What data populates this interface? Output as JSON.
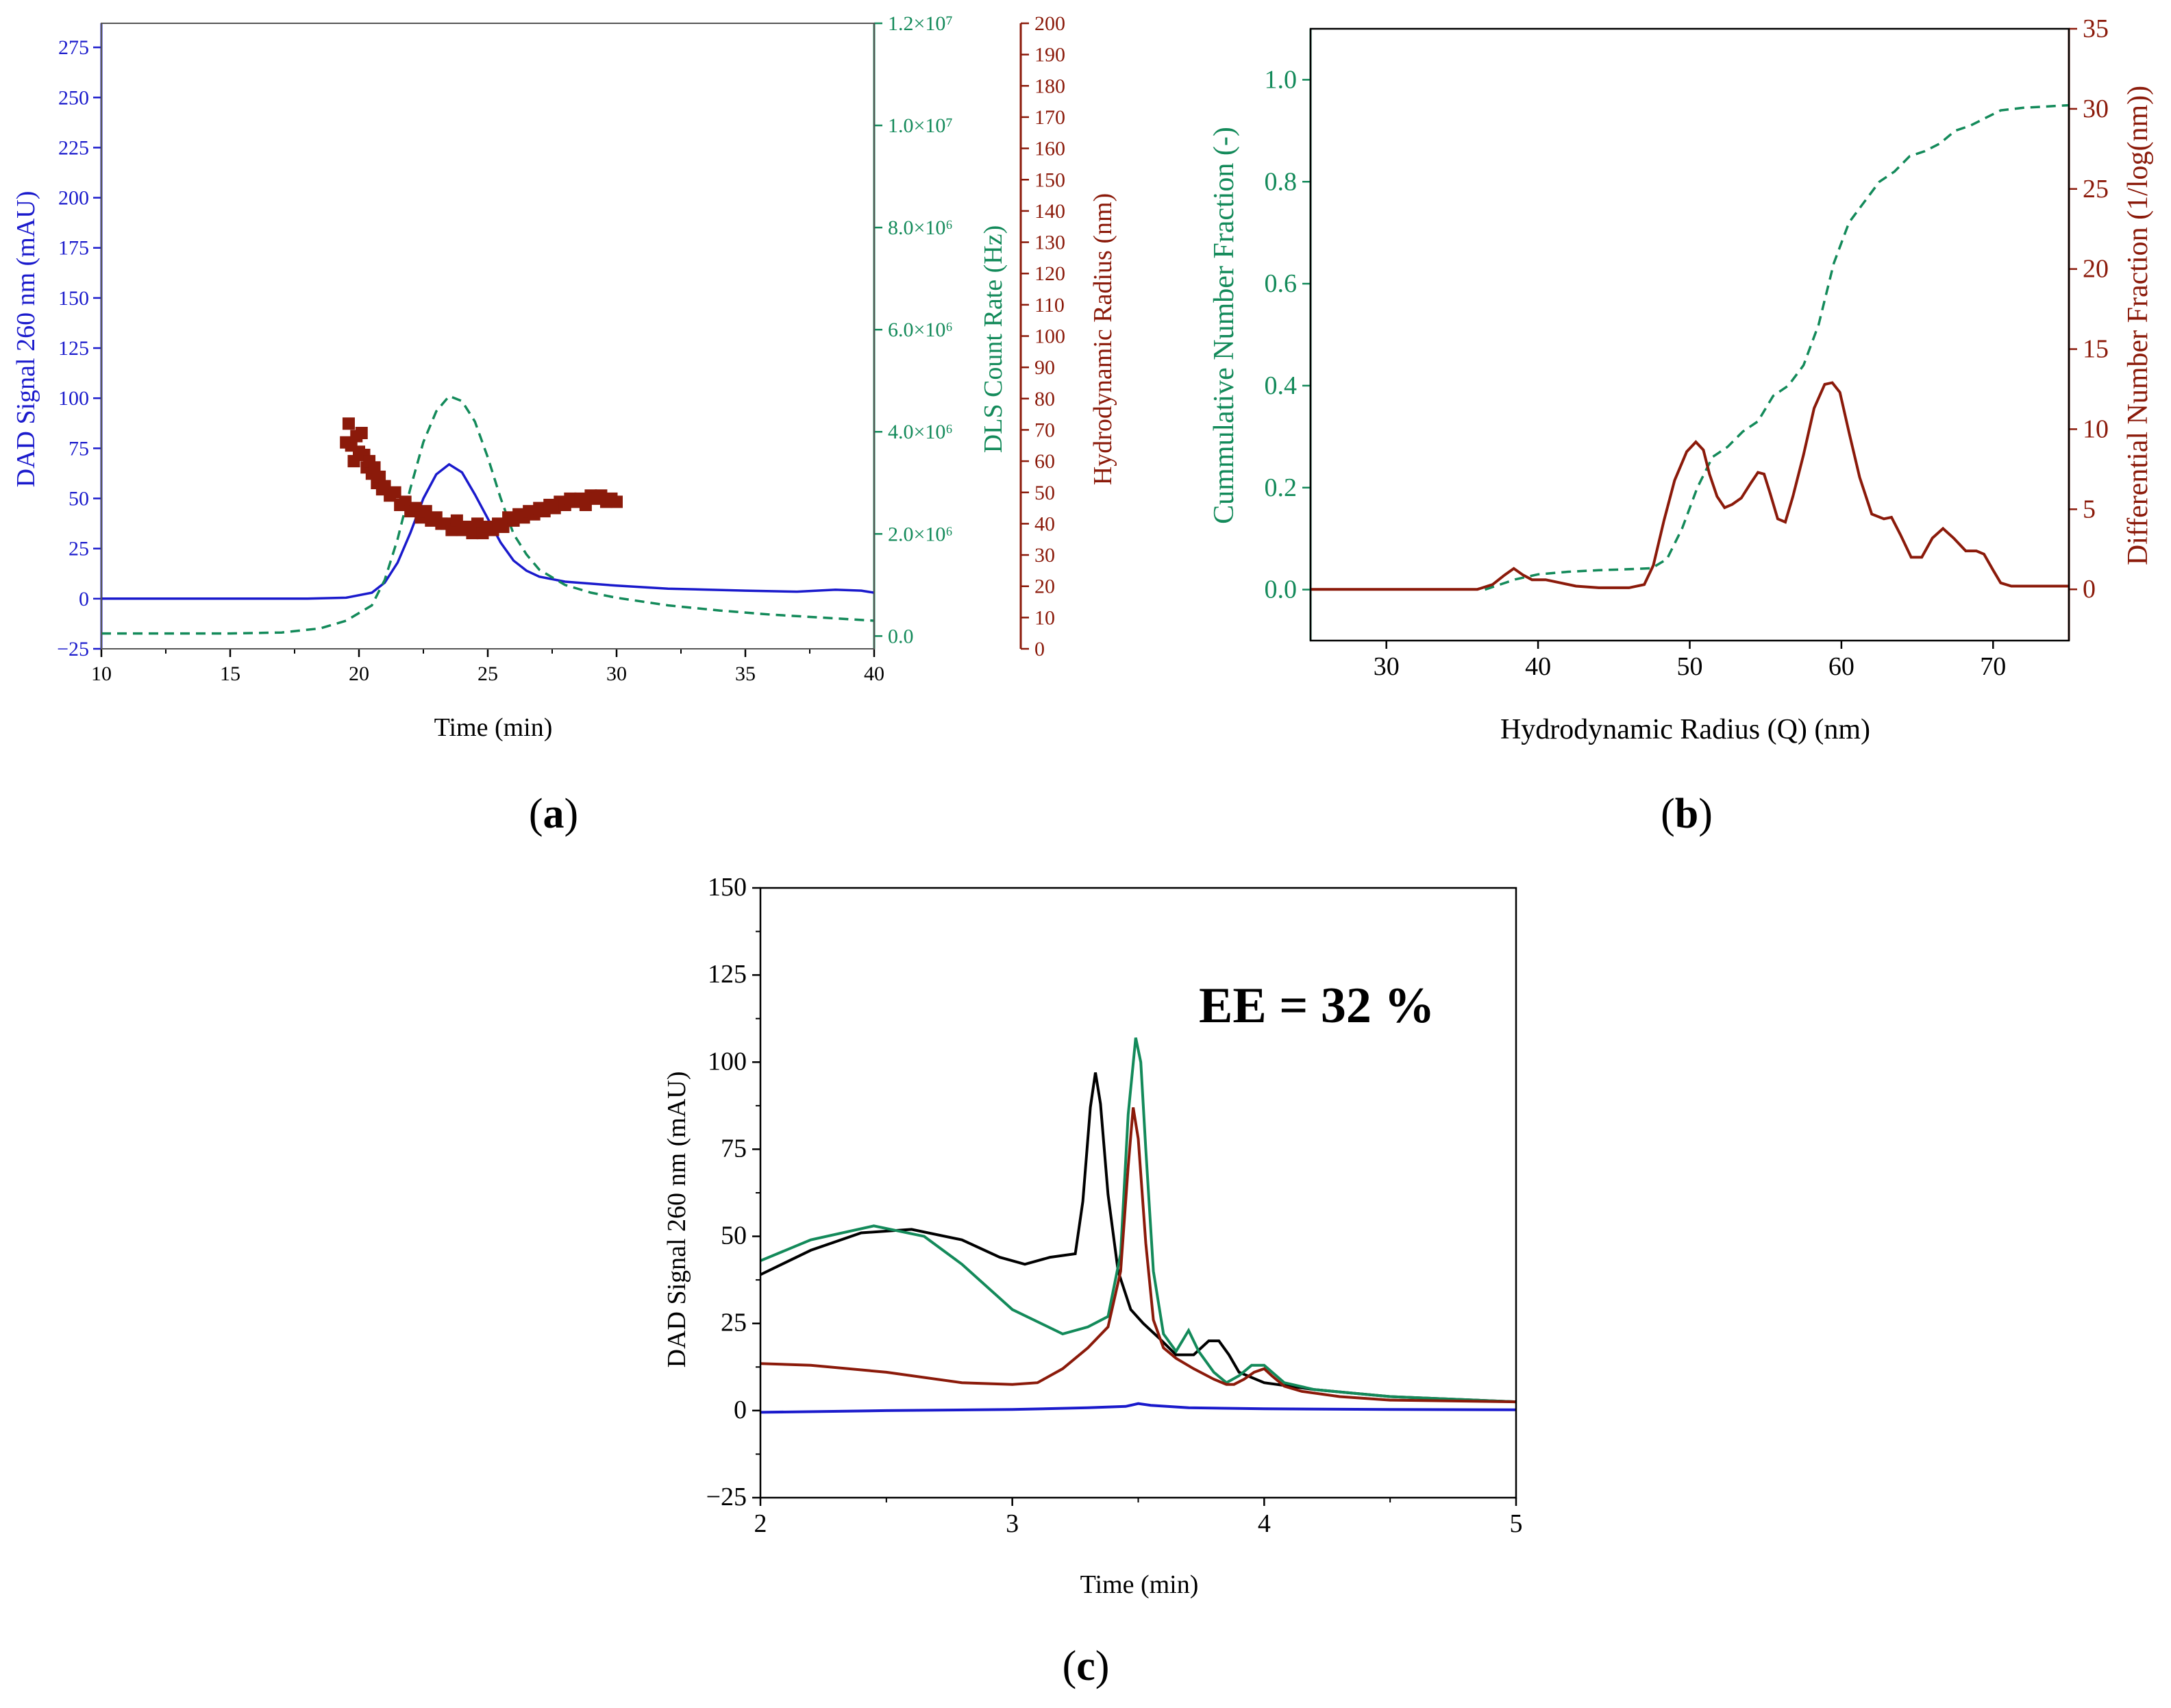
{
  "colors": {
    "blue": "#1a1acc",
    "green": "#138a5a",
    "darkred": "#8b1a0a",
    "black": "#000000"
  },
  "panels": {
    "a": "(a)",
    "b": "(b)",
    "c": "(c)"
  },
  "chart_data": [
    {
      "id": "a",
      "type": "line",
      "label": "(a)",
      "xlabel": "Time (min)",
      "xlim": [
        10,
        40
      ],
      "xticks": [
        10,
        15,
        20,
        25,
        30,
        35,
        40
      ],
      "y_left": {
        "label": "DAD Signal 260 nm (mAU)",
        "lim": [
          -25,
          287
        ],
        "ticks": [
          -25,
          0,
          25,
          50,
          75,
          100,
          125,
          150,
          175,
          200,
          225,
          250,
          275
        ]
      },
      "y_right1": {
        "label": "DLS Count Rate (Hz)",
        "lim": [
          -250000.0,
          12000000.0
        ],
        "ticks": [
          0,
          2000000.0,
          4000000.0,
          6000000.0,
          8000000.0,
          10000000.0,
          12000000.0
        ],
        "tick_labels": [
          "0.0",
          "2.0×10⁶",
          "4.0×10⁶",
          "6.0×10⁶",
          "8.0×10⁶",
          "1.0×10⁷",
          "1.2×10⁷"
        ]
      },
      "y_right2": {
        "label": "Hydrodynamic Radius (nm)",
        "lim": [
          0,
          200
        ],
        "ticks": [
          0,
          10,
          20,
          30,
          40,
          50,
          60,
          70,
          80,
          90,
          100,
          110,
          120,
          130,
          140,
          150,
          160,
          170,
          180,
          190,
          200
        ]
      },
      "series": [
        {
          "name": "DAD Signal",
          "axis": "y_left",
          "style": "solid",
          "color": "blue",
          "x": [
            10,
            15,
            18,
            19.5,
            20.5,
            21,
            21.5,
            22,
            22.5,
            23,
            23.5,
            24,
            24.5,
            25,
            25.5,
            26,
            26.5,
            27,
            28,
            30,
            32,
            35,
            37,
            38.5,
            39.5,
            40
          ],
          "y": [
            0,
            0,
            0,
            0.5,
            3,
            8,
            18,
            33,
            50,
            62,
            67,
            63,
            52,
            40,
            28,
            19,
            14,
            11,
            8.5,
            6.5,
            5,
            4,
            3.5,
            4.5,
            4,
            3
          ]
        },
        {
          "name": "DLS Count Rate",
          "axis": "y_right1",
          "style": "dashed",
          "color": "green",
          "x": [
            10,
            15,
            17,
            18.5,
            19.5,
            20.5,
            21,
            21.5,
            22,
            22.5,
            23,
            23.5,
            24,
            24.5,
            25,
            25.5,
            26,
            26.5,
            27,
            28,
            29,
            30,
            32,
            34,
            36,
            38,
            40
          ],
          "y": [
            50000.0,
            50000.0,
            70000.0,
            150000.0,
            300000.0,
            600000.0,
            1100000.0,
            1900000.0,
            2900000.0,
            3800000.0,
            4400000.0,
            4700000.0,
            4600000.0,
            4200000.0,
            3500000.0,
            2700000.0,
            2000000.0,
            1600000.0,
            1300000.0,
            1000000.0,
            850000.0,
            750000.0,
            600000.0,
            500000.0,
            420000.0,
            360000.0,
            300000.0
          ]
        },
        {
          "name": "Hydrodynamic Radius",
          "axis": "y_right2",
          "style": "square-markers",
          "color": "darkred",
          "x": [
            19.5,
            19.6,
            19.7,
            19.8,
            19.9,
            20.0,
            20.1,
            20.2,
            20.3,
            20.4,
            20.5,
            20.6,
            20.7,
            20.8,
            20.9,
            21.0,
            21.2,
            21.4,
            21.6,
            21.8,
            22.0,
            22.2,
            22.4,
            22.6,
            22.8,
            23.0,
            23.2,
            23.4,
            23.6,
            23.8,
            24.0,
            24.2,
            24.4,
            24.6,
            24.8,
            25.0,
            25.2,
            25.4,
            25.6,
            25.8,
            26.0,
            26.2,
            26.4,
            26.6,
            26.8,
            27.0,
            27.2,
            27.4,
            27.6,
            27.8,
            28.0,
            28.2,
            28.4,
            28.6,
            28.8,
            29.0,
            29.2,
            29.4,
            29.6,
            29.8,
            30.0
          ],
          "y": [
            66,
            72,
            65,
            60,
            68,
            63,
            69,
            62,
            58,
            60,
            56,
            58,
            53,
            55,
            51,
            52,
            49,
            50,
            46,
            47,
            44,
            45,
            42,
            44,
            41,
            42,
            40,
            40,
            38,
            41,
            38,
            39,
            37,
            40,
            37,
            39,
            38,
            40,
            39,
            42,
            41,
            43,
            42,
            44,
            43,
            45,
            44,
            46,
            45,
            47,
            46,
            48,
            47,
            48,
            46,
            49,
            48,
            49,
            47,
            48,
            47
          ]
        }
      ]
    },
    {
      "id": "b",
      "type": "line",
      "label": "(b)",
      "xlabel": "Hydrodynamic Radius (Q) (nm)",
      "xlim": [
        25,
        75
      ],
      "xticks": [
        30,
        40,
        50,
        60,
        70
      ],
      "y_left": {
        "label": "Cummulative Number Fraction (-)",
        "lim": [
          -0.1,
          1.1
        ],
        "ticks": [
          0.0,
          0.2,
          0.4,
          0.6,
          0.8,
          1.0
        ],
        "tick_labels": [
          "0.0",
          "0.2",
          "0.4",
          "0.6",
          "0.8",
          "1.0"
        ]
      },
      "y_right": {
        "label": "Differential Number Fraction (1/log(nm))",
        "lim": [
          -3.2,
          35
        ],
        "ticks": [
          0,
          5,
          10,
          15,
          20,
          25,
          30,
          35
        ]
      },
      "series": [
        {
          "name": "Cumulative Number Fraction",
          "axis": "y_left",
          "style": "dashed",
          "color": "green",
          "x": [
            36.5,
            37.5,
            38.5,
            40,
            42,
            44,
            46,
            47.5,
            48.5,
            49.5,
            50.5,
            51.5,
            52.5,
            53.5,
            54.5,
            55.5,
            56.5,
            57.5,
            58.5,
            59.5,
            60.5,
            61.5,
            62.5,
            63.5,
            64.5,
            65.5,
            66.5,
            67.5,
            68.5,
            69.5,
            70.5,
            72,
            75
          ],
          "y": [
            0.0,
            0.01,
            0.02,
            0.03,
            0.035,
            0.038,
            0.04,
            0.042,
            0.06,
            0.12,
            0.2,
            0.26,
            0.28,
            0.31,
            0.33,
            0.38,
            0.4,
            0.44,
            0.52,
            0.64,
            0.72,
            0.76,
            0.8,
            0.82,
            0.85,
            0.86,
            0.875,
            0.9,
            0.91,
            0.925,
            0.94,
            0.945,
            0.95
          ]
        },
        {
          "name": "Differential Number Fraction",
          "axis": "y_right",
          "style": "solid",
          "color": "darkred",
          "x": [
            25,
            34,
            36,
            37,
            37.8,
            38.4,
            39,
            39.6,
            40.5,
            41.5,
            42.5,
            44,
            46,
            47,
            47.6,
            48.3,
            49,
            49.8,
            50.4,
            50.9,
            51.3,
            51.8,
            52.3,
            52.8,
            53.4,
            54,
            54.5,
            54.9,
            55.3,
            55.8,
            56.3,
            56.8,
            57.5,
            58.2,
            58.9,
            59.4,
            59.9,
            60.5,
            61.2,
            62,
            62.8,
            63.3,
            63.9,
            64.6,
            65.3,
            66,
            66.7,
            67.4,
            68.2,
            68.9,
            69.4,
            70,
            70.5,
            71.2,
            75
          ],
          "y": [
            0,
            0,
            0,
            0.3,
            0.9,
            1.3,
            0.9,
            0.6,
            0.6,
            0.4,
            0.2,
            0.1,
            0.1,
            0.3,
            1.5,
            4.3,
            6.8,
            8.6,
            9.2,
            8.7,
            7.2,
            5.8,
            5.1,
            5.3,
            5.7,
            6.6,
            7.3,
            7.2,
            6.0,
            4.4,
            4.2,
            5.8,
            8.4,
            11.3,
            12.8,
            12.9,
            12.3,
            9.8,
            7.0,
            4.7,
            4.4,
            4.5,
            3.4,
            2.0,
            2.0,
            3.2,
            3.8,
            3.2,
            2.4,
            2.4,
            2.2,
            1.2,
            0.4,
            0.2,
            0.2
          ]
        }
      ]
    },
    {
      "id": "c",
      "type": "line",
      "label": "(c)",
      "annotation": "EE = 32 %",
      "xlabel": "Time (min)",
      "ylabel": "DAD Signal 260 nm (mAU)",
      "xlim": [
        2,
        5
      ],
      "xticks": [
        2,
        3,
        4,
        5
      ],
      "ylim": [
        -25,
        150
      ],
      "yticks": [
        -25,
        0,
        25,
        50,
        75,
        100,
        125,
        150
      ],
      "series": [
        {
          "name": "black trace",
          "color": "black",
          "x": [
            2.0,
            2.2,
            2.4,
            2.6,
            2.8,
            2.95,
            3.05,
            3.15,
            3.25,
            3.28,
            3.31,
            3.33,
            3.35,
            3.38,
            3.42,
            3.47,
            3.52,
            3.58,
            3.65,
            3.72,
            3.78,
            3.82,
            3.86,
            3.9,
            4.0,
            4.2,
            4.5,
            5.0
          ],
          "y": [
            39,
            46,
            51,
            52,
            49,
            44,
            42,
            44,
            45,
            60,
            87,
            97,
            88,
            62,
            40,
            29,
            25,
            21,
            16,
            16,
            20,
            20,
            16,
            11,
            8,
            6,
            4,
            2.5
          ]
        },
        {
          "name": "green trace",
          "color": "green",
          "x": [
            2.0,
            2.2,
            2.45,
            2.65,
            2.8,
            3.0,
            3.2,
            3.3,
            3.38,
            3.43,
            3.46,
            3.49,
            3.51,
            3.53,
            3.56,
            3.6,
            3.65,
            3.7,
            3.74,
            3.8,
            3.85,
            3.9,
            3.95,
            4.0,
            4.08,
            4.2,
            4.5,
            5.0
          ],
          "y": [
            43,
            49,
            53,
            50,
            42,
            29,
            22,
            24,
            27,
            45,
            85,
            107,
            100,
            75,
            40,
            22,
            17,
            23,
            17,
            11,
            8,
            10,
            13,
            13,
            8,
            6,
            4,
            2.5
          ]
        },
        {
          "name": "dark red trace",
          "color": "darkred",
          "x": [
            2.0,
            2.2,
            2.5,
            2.8,
            3.0,
            3.1,
            3.2,
            3.3,
            3.38,
            3.43,
            3.46,
            3.48,
            3.5,
            3.53,
            3.56,
            3.6,
            3.65,
            3.72,
            3.8,
            3.85,
            3.88,
            3.92,
            3.96,
            4.0,
            4.03,
            4.08,
            4.15,
            4.3,
            4.5,
            5.0
          ],
          "y": [
            13.5,
            13,
            11,
            8,
            7.5,
            8,
            12,
            18,
            24,
            40,
            70,
            87,
            78,
            48,
            26,
            18,
            15,
            12,
            9,
            7.5,
            7.5,
            9,
            11,
            12,
            10,
            7,
            5.5,
            4,
            3,
            2.5
          ]
        },
        {
          "name": "blue trace",
          "color": "blue",
          "x": [
            2.0,
            2.5,
            3.0,
            3.3,
            3.45,
            3.5,
            3.55,
            3.7,
            4.0,
            4.5,
            5.0
          ],
          "y": [
            -0.5,
            0,
            0.3,
            0.8,
            1.2,
            2.0,
            1.5,
            0.8,
            0.5,
            0.3,
            0.2
          ]
        }
      ]
    }
  ]
}
